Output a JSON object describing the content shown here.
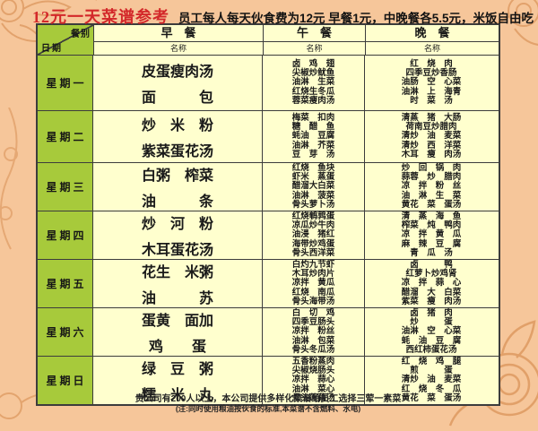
{
  "title": {
    "red": "12元一天菜谱参考",
    "black": "员工每人每天伙食费为12元  早餐1元，中晚餐各5.5元，米饭自由吃"
  },
  "table": {
    "corner": {
      "top": "餐别",
      "bottom": "日期"
    },
    "meal_headers": [
      {
        "label": "早　餐",
        "sub": "名称"
      },
      {
        "label": "午　餐",
        "sub": "名称"
      },
      {
        "label": "晚　餐",
        "sub": "名称"
      }
    ],
    "days": [
      {
        "label": "星期一",
        "breakfast": [
          "皮蛋瘦肉汤",
          "面　　　包"
        ],
        "lunch": [
          "卤　鸡　翅",
          "尖椒炒鱿鱼",
          "油淋　生菜",
          "红烧生冬瓜",
          "蓉菜瘦肉汤"
        ],
        "dinner": [
          "红　烧　肉",
          "四季豆炒香肠",
          "油肠　空　心菜",
          "油淋　上　海青",
          "时　菜　汤"
        ]
      },
      {
        "label": "星期二",
        "breakfast": [
          "炒　米　粉",
          "紫菜蛋花汤"
        ],
        "lunch": [
          "梅菜　扣肉",
          "糖　醋　鱼",
          "蚝油　豆腐",
          "油淋　芥菜",
          "豆　芽　汤"
        ],
        "dinner": [
          "清蒸　猪　大肠",
          "荷南豆炒腊肉",
          "清炒　油　麦菜",
          "清炒　西　洋菜",
          "木耳　瘦　肉汤"
        ]
      },
      {
        "label": "星期三",
        "breakfast": [
          "白粥　榨菜",
          "油　　　条"
        ],
        "lunch": [
          "红烧　鱼块",
          "虾米　蒸蛋",
          "醋溜大白菜",
          "油淋　菠菜",
          "骨头萝卜汤"
        ],
        "dinner": [
          "炒　回　锅　肉",
          "蒜蓉　炒　腊肉",
          "凉　拌　粉　丝",
          "油　淋　生　菜",
          "黄花　菜　蛋汤"
        ]
      },
      {
        "label": "星期四",
        "breakfast": [
          "炒　河　粉",
          "木耳蛋花汤"
        ],
        "lunch": [
          "红烧鹌鹑蛋",
          "凉瓜炒牛肉",
          "油浸　猪红",
          "海带炒鸡蛋",
          "骨头西洋菜"
        ],
        "dinner": [
          "清　蒸　海　鱼",
          "榨菜　炖　鸭肉",
          "凉　拌　黄　瓜",
          "麻　辣　豆　腐",
          "青　瓜　汤"
        ]
      },
      {
        "label": "星期五",
        "breakfast": [
          "花生　米粥",
          "油　　　苏"
        ],
        "lunch": [
          "白灼九节虾",
          "木耳炒肉片",
          "凉拌　黄瓜",
          "红烧　南瓜",
          "骨头海带汤"
        ],
        "dinner": [
          "卤　　　鸭",
          "红萝卜炒鸡肾",
          "凉　拌　蒜　心",
          "醋溜　大　白菜",
          "紫菜　瘦　肉汤"
        ]
      },
      {
        "label": "星期六",
        "breakfast": [
          "蛋黄　面加",
          "鸡　　蛋"
        ],
        "lunch": [
          "白　切　鸡",
          "四季豆肠头",
          "凉拌　粉丝",
          "油淋　包菜",
          "骨头冬瓜汤"
        ],
        "dinner": [
          "卤　猪　肉",
          "炒　　　蛋",
          "油淋　空　心菜",
          "蚝　油　豆　腐",
          "西红柿蛋花汤"
        ]
      },
      {
        "label": "星期日",
        "breakfast": [
          "绿　豆　粥",
          "糯　米　丸"
        ],
        "lunch": [
          "五香粉蒸肉",
          "尖椒烧肠头",
          "凉拌　蒜心",
          "油淋　菜心",
          "骨头莲藕汤"
        ],
        "dinner": [
          "红　烧　鸡　腿",
          "煎　　　蛋",
          "清炒　油　麦菜",
          "红　烧　冬　瓜",
          "黄花　菜　蛋汤"
        ]
      }
    ]
  },
  "footer": {
    "line1": "贵公司有200人以上，本公司提供多样化菜谱给员工选择三荤一素菜",
    "line2": "(注:同时使用粮油按伙食的标准,本菜谱不含燃料、水电)"
  },
  "colors": {
    "page_background": "#f6c69a",
    "title_red": "#d3282a",
    "cell_yellow": "#ffffce",
    "day_green": "#a7ca3b",
    "pattern_orange": "#df9c64",
    "border": "#3c3c3c"
  }
}
